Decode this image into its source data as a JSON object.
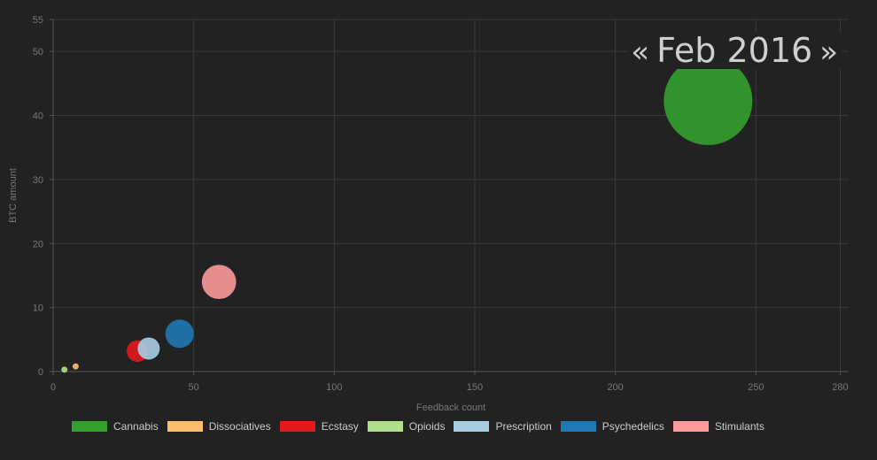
{
  "period": {
    "prev_label": "«",
    "label": "Feb 2016",
    "next_label": "»"
  },
  "chart_data": {
    "type": "scatter",
    "subtype": "bubble",
    "xlabel": "Feedback count",
    "ylabel": "BTC amount",
    "xlim": [
      0,
      283
    ],
    "ylim": [
      0,
      55
    ],
    "x_ticks": [
      0,
      50,
      100,
      150,
      200,
      250,
      280
    ],
    "y_ticks": [
      0,
      10,
      20,
      30,
      40,
      50,
      55
    ],
    "grid": true,
    "legend_position": "bottom",
    "series": [
      {
        "name": "Cannabis",
        "color": "#33a02c",
        "x": 233,
        "y": 42.3,
        "size": 3200
      },
      {
        "name": "Dissociatives",
        "color": "#fdbf6f",
        "x": 8,
        "y": 0.8,
        "size": 14
      },
      {
        "name": "Ecstasy",
        "color": "#e31a1c",
        "x": 30,
        "y": 3.2,
        "size": 190
      },
      {
        "name": "Opioids",
        "color": "#b2df8a",
        "x": 4,
        "y": 0.3,
        "size": 9
      },
      {
        "name": "Prescription",
        "color": "#a6cee3",
        "x": 34,
        "y": 3.6,
        "size": 200
      },
      {
        "name": "Psychedelics",
        "color": "#1f78b4",
        "x": 45,
        "y": 5.9,
        "size": 330
      },
      {
        "name": "Stimulants",
        "color": "#fb9a99",
        "x": 59,
        "y": 14,
        "size": 480
      }
    ]
  }
}
